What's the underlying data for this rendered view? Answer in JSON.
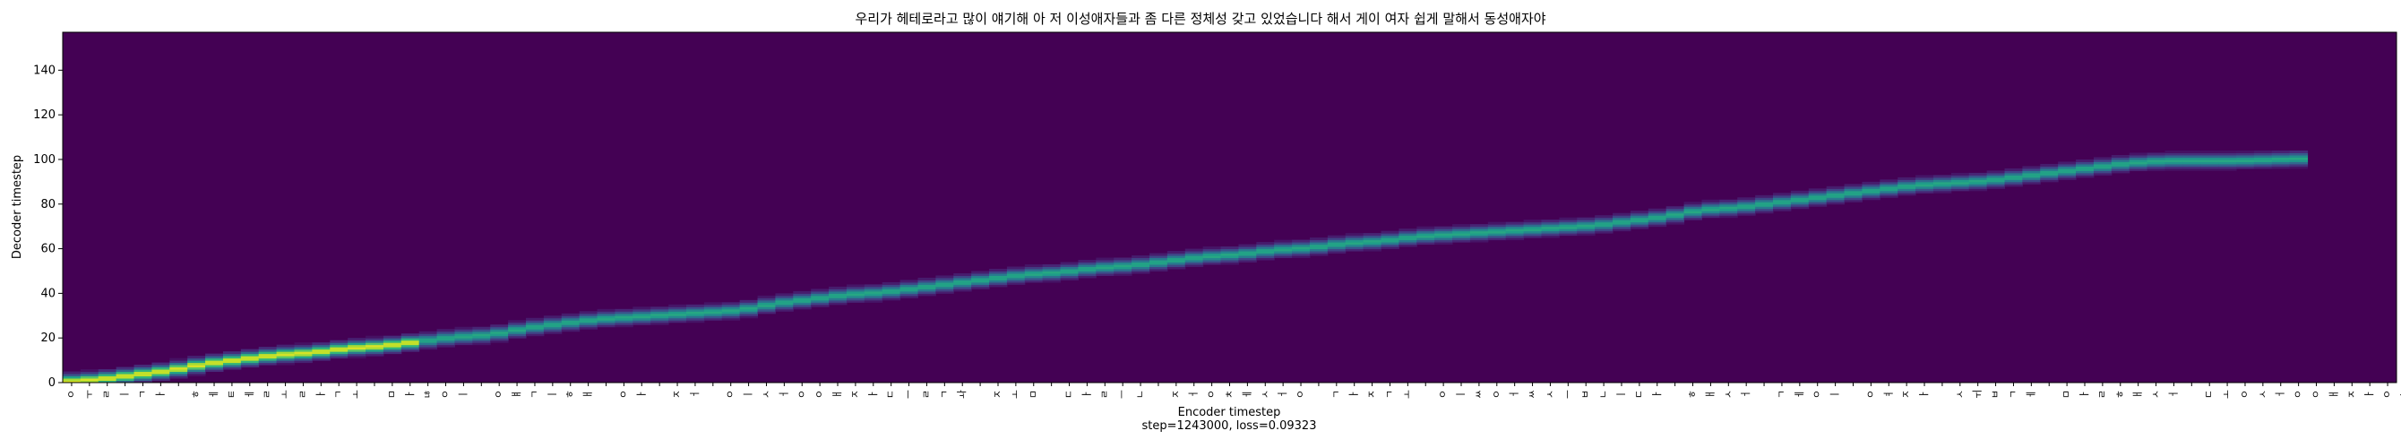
{
  "chart_data": {
    "type": "heatmap",
    "title": "우리가 헤테로라고 많이 얘기해 아 저 이성애자들과 좀 다른 정체성 갖고 있었습니다 해서 게이 여자 쉽게 말해서 동성애자야",
    "xlabel": "Encoder timestep",
    "ylabel": "Decoder timestep",
    "footer": "step=1243000, loss=0.09323",
    "x_range": [
      0,
      131
    ],
    "ylim": [
      0,
      157
    ],
    "y_ticks": [
      0,
      20,
      40,
      60,
      80,
      100,
      120,
      140
    ],
    "x_tick_labels": [
      "ㅇ",
      "ㅜ",
      "ㄹ",
      "ㅣ",
      "ㄱ",
      "ㅏ",
      " ",
      "ㅎ",
      "ㅔ",
      "ㅌ",
      "ㅔ",
      "ㄹ",
      "ㅗ",
      "ㄹ",
      "ㅏ",
      "ㄱ",
      "ㅗ",
      " ",
      "ㅁ",
      "ㅏ",
      "ㄶ",
      "ㅇ",
      "ㅣ",
      " ",
      "ㅇ",
      "ㅒ",
      "ㄱ",
      "ㅣ",
      "ㅎ",
      "ㅐ",
      " ",
      "ㅇ",
      "ㅏ",
      " ",
      "ㅈ",
      "ㅓ",
      " ",
      "ㅇ",
      "ㅣ",
      "ㅅ",
      "ㅓ",
      "ㅇ",
      "ㅇ",
      "ㅐ",
      "ㅈ",
      "ㅏ",
      "ㄷ",
      "ㅡ",
      "ㄹ",
      "ㄱ",
      "ㅘ",
      " ",
      "ㅈ",
      "ㅗ",
      "ㅁ",
      " ",
      "ㄷ",
      "ㅏ",
      "ㄹ",
      "ㅡ",
      "ㄴ",
      " ",
      "ㅈ",
      "ㅓ",
      "ㅇ",
      "ㅊ",
      "ㅔ",
      "ㅅ",
      "ㅓ",
      "ㅇ",
      " ",
      "ㄱ",
      "ㅏ",
      "ㅈ",
      "ㄱ",
      "ㅗ",
      " ",
      "ㅇ",
      "ㅣ",
      "ㅆ",
      "ㅇ",
      "ㅓ",
      "ㅆ",
      "ㅅ",
      "ㅡ",
      "ㅂ",
      "ㄴ",
      "ㅣ",
      "ㄷ",
      "ㅏ",
      " ",
      "ㅎ",
      "ㅐ",
      "ㅅ",
      "ㅓ",
      " ",
      "ㄱ",
      "ㅔ",
      "ㅇ",
      "ㅣ",
      " ",
      "ㅇ",
      "ㅕ",
      "ㅈ",
      "ㅏ",
      " ",
      "ㅅ",
      "ㅟ",
      "ㅂ",
      "ㄱ",
      "ㅔ",
      " ",
      "ㅁ",
      "ㅏ",
      "ㄹ",
      "ㅎ",
      "ㅐ",
      "ㅅ",
      "ㅓ",
      " ",
      "ㄷ",
      "ㅗ",
      "ㅇ",
      "ㅅ",
      "ㅓ",
      "ㅇ",
      "ㅇ",
      "ㅐ",
      "ㅈ",
      "ㅏ",
      "ㅇ",
      "ㅑ",
      ".",
      " ",
      "~"
    ],
    "colormap": [
      "#440154",
      "#482878",
      "#3e4989",
      "#31688e",
      "#26828e",
      "#1f9e89",
      "#35b779",
      "#6ece58",
      "#b5de2b",
      "#fde725"
    ],
    "background_color": "#440154",
    "alignment_path": [
      [
        0,
        0
      ],
      [
        2,
        1
      ],
      [
        4,
        3
      ],
      [
        6,
        5
      ],
      [
        8,
        8
      ],
      [
        10,
        10
      ],
      [
        12,
        12
      ],
      [
        14,
        13
      ],
      [
        16,
        15
      ],
      [
        18,
        16
      ],
      [
        20,
        18
      ],
      [
        22,
        20
      ],
      [
        24,
        21
      ],
      [
        26,
        24
      ],
      [
        28,
        26
      ],
      [
        30,
        28
      ],
      [
        32,
        29
      ],
      [
        34,
        30
      ],
      [
        36,
        31
      ],
      [
        38,
        32
      ],
      [
        40,
        35
      ],
      [
        42,
        37
      ],
      [
        44,
        39
      ],
      [
        46,
        40
      ],
      [
        48,
        42
      ],
      [
        50,
        44
      ],
      [
        52,
        46
      ],
      [
        54,
        48
      ],
      [
        56,
        49
      ],
      [
        58,
        51
      ],
      [
        60,
        52
      ],
      [
        62,
        54
      ],
      [
        64,
        56
      ],
      [
        66,
        57
      ],
      [
        68,
        59
      ],
      [
        70,
        60
      ],
      [
        72,
        62
      ],
      [
        74,
        63
      ],
      [
        76,
        65
      ],
      [
        78,
        66
      ],
      [
        80,
        67
      ],
      [
        82,
        68
      ],
      [
        84,
        69
      ],
      [
        86,
        70
      ],
      [
        88,
        72
      ],
      [
        90,
        74
      ],
      [
        92,
        77
      ],
      [
        94,
        78
      ],
      [
        96,
        80
      ],
      [
        98,
        82
      ],
      [
        100,
        84
      ],
      [
        102,
        86
      ],
      [
        104,
        88
      ],
      [
        106,
        89
      ],
      [
        108,
        90
      ],
      [
        110,
        92
      ],
      [
        112,
        94
      ],
      [
        114,
        96
      ],
      [
        116,
        98
      ],
      [
        118,
        99
      ],
      [
        120,
        99
      ],
      [
        122,
        99
      ],
      [
        126,
        100
      ]
    ]
  }
}
